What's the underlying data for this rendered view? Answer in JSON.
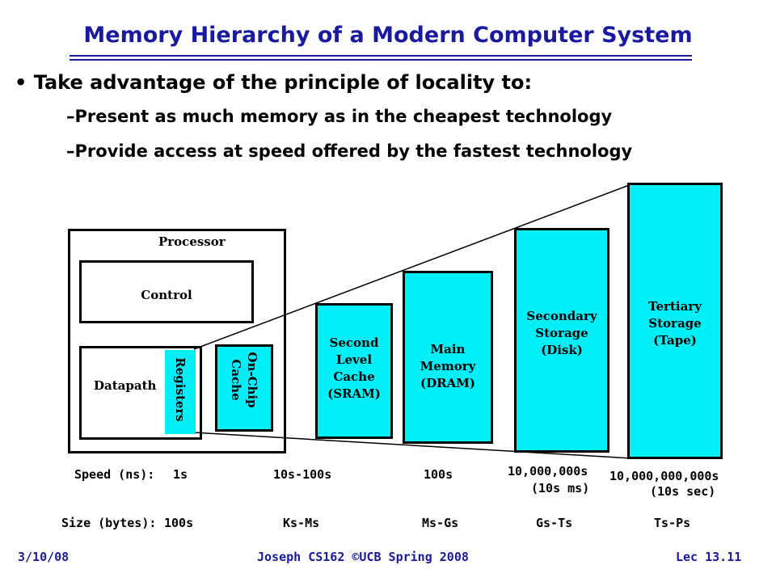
{
  "title": "Memory Hierarchy of a Modern Computer System",
  "bullets": {
    "main": "Take advantage of the principle of locality to:",
    "sub1": "–Present as much memory as in the cheapest technology",
    "sub2": "–Provide access at speed offered by the fastest technology"
  },
  "diagram": {
    "processor": "Processor",
    "control": "Control",
    "datapath": "Datapath",
    "registers": "Registers",
    "onchip": [
      "On-Chip",
      "Cache"
    ],
    "second": [
      "Second",
      "Level",
      "Cache",
      "(SRAM)"
    ],
    "main_memory": [
      "Main",
      "Memory",
      "(DRAM)"
    ],
    "secondary": [
      "Secondary",
      "Storage",
      "(Disk)"
    ],
    "tertiary": [
      "Tertiary",
      "Storage",
      "(Tape)"
    ],
    "colors": {
      "cyan": "#00f0f8",
      "title_blue": "#1a1aa0"
    }
  },
  "speed": {
    "label": "Speed (ns):",
    "v1": "1s",
    "v2": "10s-100s",
    "v3": "100s",
    "v4": "10,000,000s",
    "v4b": "(10s ms)",
    "v5": "10,000,000,000s",
    "v5b": "(10s sec)"
  },
  "size": {
    "label": "Size (bytes):",
    "v1": "100s",
    "v2": "Ks-Ms",
    "v3": "Ms-Gs",
    "v4": "Gs-Ts",
    "v5": "Ts-Ps"
  },
  "footer": {
    "date": "3/10/08",
    "course": "Joseph CS162 ©UCB Spring 2008",
    "lecture": "Lec 13.11"
  }
}
